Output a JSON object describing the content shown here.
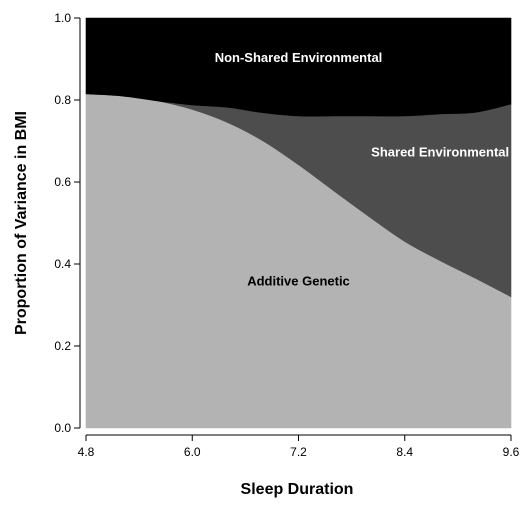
{
  "chart_data": {
    "type": "area",
    "stacked": true,
    "xlabel": "Sleep Duration",
    "ylabel": "Proportion of Variance in BMI",
    "xlim": [
      4.8,
      9.6
    ],
    "ylim": [
      0.0,
      1.0
    ],
    "x_ticks": [
      "4.8",
      "6.0",
      "7.2",
      "8.4",
      "9.6"
    ],
    "y_ticks": [
      "0.0",
      "0.2",
      "0.4",
      "0.6",
      "0.8",
      "1.0"
    ],
    "grid": false,
    "legend": "none",
    "x": [
      4.8,
      5.2,
      5.6,
      6.0,
      6.4,
      6.8,
      7.2,
      7.6,
      8.0,
      8.4,
      8.8,
      9.2,
      9.6
    ],
    "series": [
      {
        "name": "Additive Genetic",
        "color": "#b3b3b3",
        "values": [
          0.815,
          0.81,
          0.798,
          0.777,
          0.745,
          0.7,
          0.642,
          0.578,
          0.515,
          0.455,
          0.408,
          0.365,
          0.32
        ]
      },
      {
        "name": "Shared Environmental",
        "color": "#4d4d4d",
        "values": [
          0.0,
          0.0,
          0.0,
          0.011,
          0.037,
          0.069,
          0.119,
          0.183,
          0.246,
          0.306,
          0.358,
          0.405,
          0.47
        ]
      },
      {
        "name": "Non-Shared Environmental",
        "color": "#000000",
        "values": [
          0.185,
          0.19,
          0.202,
          0.212,
          0.218,
          0.231,
          0.239,
          0.239,
          0.239,
          0.239,
          0.234,
          0.23,
          0.21
        ]
      }
    ],
    "annotations": [
      {
        "text": "Non-Shared Environmental",
        "x": 7.2,
        "y": 0.905,
        "color": "#ffffff"
      },
      {
        "text": "Shared Environmental",
        "x": 8.8,
        "y": 0.675,
        "color": "#ffffff"
      },
      {
        "text": "Additive Genetic",
        "x": 7.2,
        "y": 0.36,
        "color": "#000000"
      }
    ]
  }
}
